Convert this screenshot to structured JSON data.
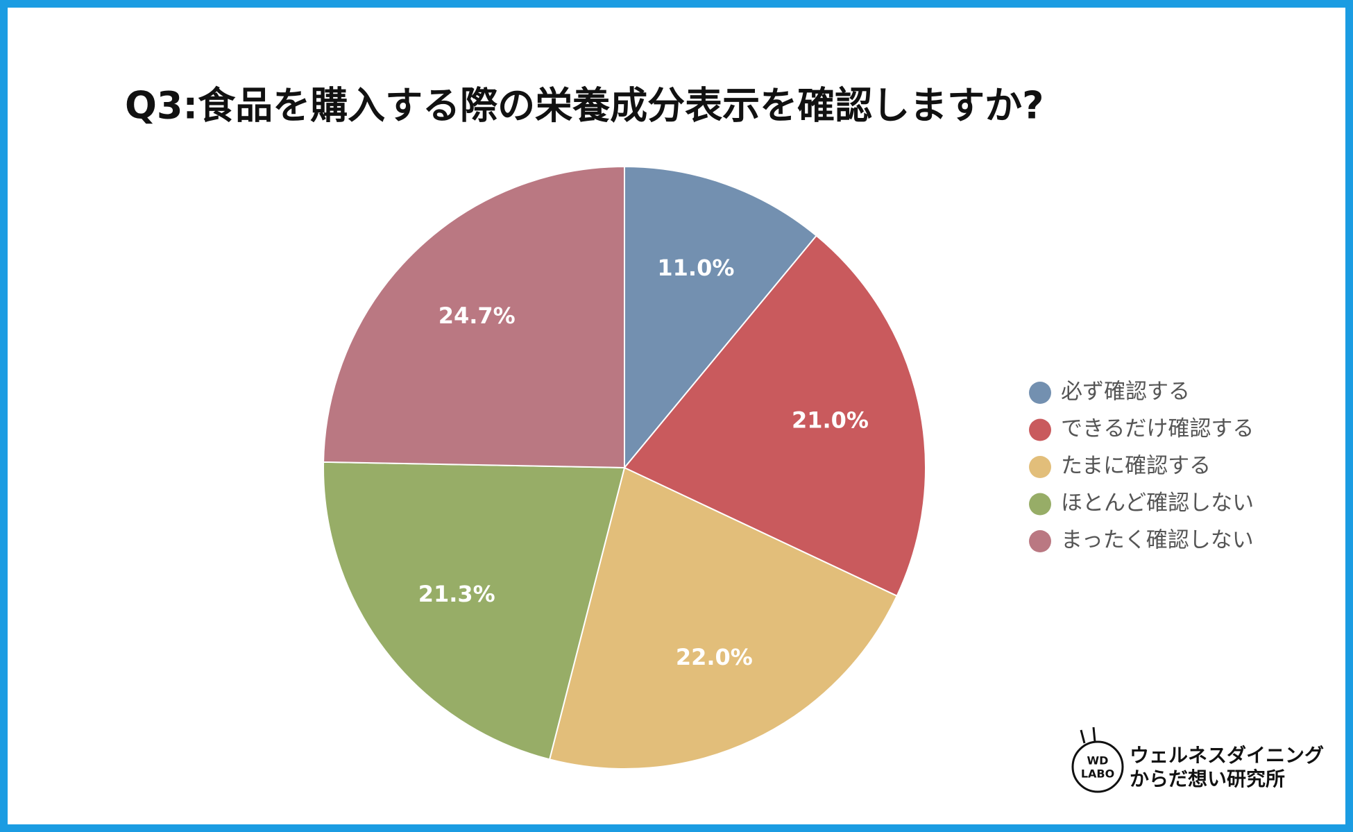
{
  "chart_data": {
    "type": "pie",
    "title": "Q3:食品を購入する際の栄養成分表示を確認しますか?",
    "categories": [
      "必ず確認する",
      "できるだけ確認する",
      "たまに確認する",
      "ほとんど確認しない",
      "まったく確認しない"
    ],
    "values": [
      11.0,
      21.0,
      22.0,
      21.3,
      24.7
    ],
    "value_labels": [
      "11.0%",
      "21.0%",
      "22.0%",
      "21.3%",
      "24.7%"
    ],
    "colors": [
      "#7390b0",
      "#c95a5d",
      "#e2be7a",
      "#97ad67",
      "#ba7882"
    ],
    "legend": "right"
  },
  "logo": {
    "mark": [
      "WD",
      "LABO"
    ],
    "name": [
      "ウェルネスダイニング",
      "からだ想い研究所"
    ]
  }
}
